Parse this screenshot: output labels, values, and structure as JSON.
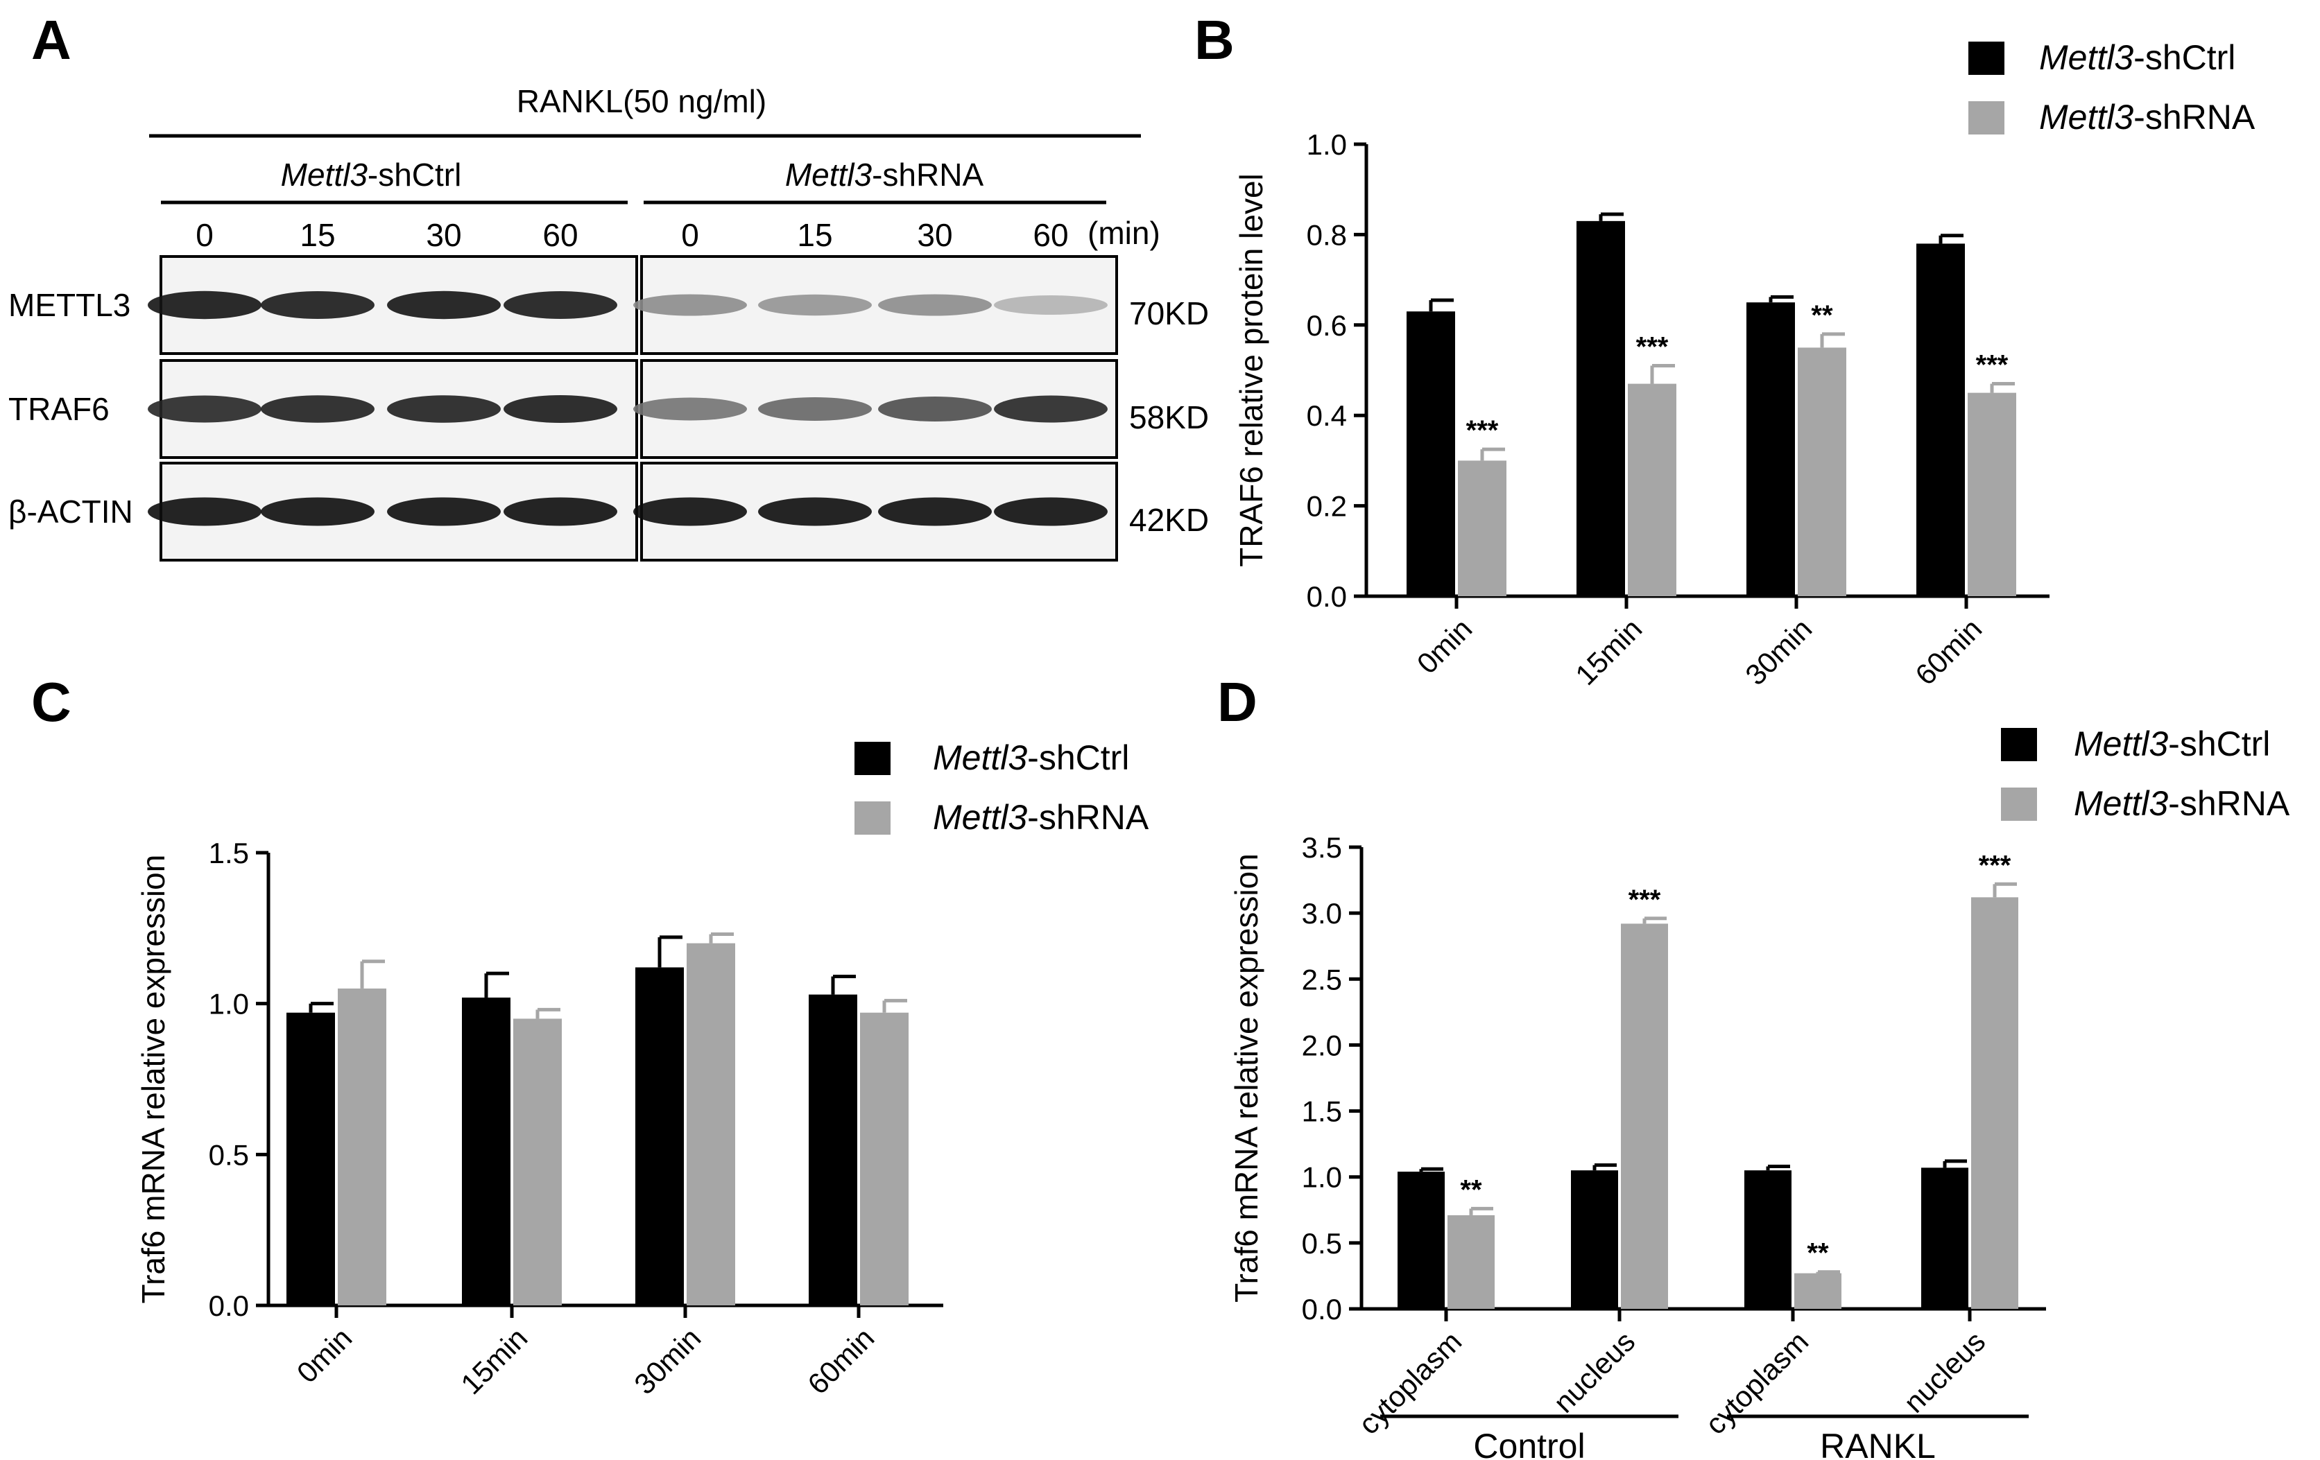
{
  "panel_letters": {
    "a": "A",
    "b": "B",
    "c": "C",
    "d": "D"
  },
  "blot": {
    "treatment_label": "RANKL(50 ng/ml)",
    "groups": [
      {
        "gene": "Mettl3",
        "suffix": "-shCtrl"
      },
      {
        "gene": "Mettl3",
        "suffix": "-shRNA"
      }
    ],
    "times": [
      "0",
      "15",
      "30",
      "60",
      "0",
      "15",
      "30",
      "60"
    ],
    "time_unit": "(min)",
    "rows": [
      {
        "protein": "METTL3",
        "size": "70KD",
        "intensity": [
          0.92,
          0.9,
          0.92,
          0.9,
          0.45,
          0.42,
          0.45,
          0.3
        ]
      },
      {
        "protein": "TRAF6",
        "size": "58KD",
        "intensity": [
          0.85,
          0.88,
          0.88,
          0.9,
          0.55,
          0.6,
          0.7,
          0.85
        ]
      },
      {
        "protein": "β-ACTIN",
        "size": "42KD",
        "intensity": [
          0.95,
          0.95,
          0.95,
          0.95,
          0.95,
          0.95,
          0.95,
          0.95
        ]
      }
    ]
  },
  "legend": {
    "ctrl": {
      "italic": "Mettl3",
      "rest": "-shCtrl",
      "color": "#000000"
    },
    "shrna": {
      "italic": "Mettl3",
      "rest": "-shRNA",
      "color": "#a6a6a6"
    }
  },
  "chart_data": [
    {
      "panel": "B",
      "type": "bar",
      "ylabel": "TRAF6 relative protein level",
      "categories": [
        "0min",
        "15min",
        "30min",
        "60min"
      ],
      "ylim": [
        0,
        1.0
      ],
      "yticks": [
        "0.0",
        "0.2",
        "0.4",
        "0.6",
        "0.8",
        "1.0"
      ],
      "series": [
        {
          "name": "Mettl3-shCtrl",
          "values": [
            0.63,
            0.83,
            0.65,
            0.78
          ],
          "errors": [
            0.025,
            0.015,
            0.012,
            0.018
          ]
        },
        {
          "name": "Mettl3-shRNA",
          "values": [
            0.3,
            0.47,
            0.55,
            0.45
          ],
          "errors": [
            0.025,
            0.04,
            0.03,
            0.02
          ]
        }
      ],
      "significance": [
        "***",
        "***",
        "**",
        "***"
      ]
    },
    {
      "panel": "C",
      "type": "bar",
      "ylabel": "Traf6 mRNA relative expression",
      "categories": [
        "0min",
        "15min",
        "30min",
        "60min"
      ],
      "ylim": [
        0,
        1.5
      ],
      "yticks": [
        "0.0",
        "0.5",
        "1.0",
        "1.5"
      ],
      "series": [
        {
          "name": "Mettl3-shCtrl",
          "values": [
            0.97,
            1.02,
            1.12,
            1.03
          ],
          "errors": [
            0.03,
            0.08,
            0.1,
            0.06
          ]
        },
        {
          "name": "Mettl3-shRNA",
          "values": [
            1.05,
            0.95,
            1.2,
            0.97
          ],
          "errors": [
            0.09,
            0.03,
            0.03,
            0.04
          ]
        }
      ],
      "significance": [
        "",
        "",
        "",
        ""
      ]
    },
    {
      "panel": "D",
      "type": "bar",
      "ylabel": "Traf6 mRNA relative expression",
      "categories": [
        "cytoplasm",
        "nucleus",
        "cytoplasm",
        "nucleus"
      ],
      "groups": [
        {
          "label": "Control",
          "categories": [
            0,
            1
          ]
        },
        {
          "label": "RANKL",
          "categories": [
            2,
            3
          ]
        }
      ],
      "ylim": [
        0,
        3.5
      ],
      "yticks": [
        "0.0",
        "0.5",
        "1.0",
        "1.5",
        "2.0",
        "2.5",
        "3.0",
        "3.5"
      ],
      "series": [
        {
          "name": "Mettl3-shCtrl",
          "values": [
            1.04,
            1.05,
            1.05,
            1.07
          ],
          "errors": [
            0.02,
            0.04,
            0.03,
            0.05
          ]
        },
        {
          "name": "Mettl3-shRNA",
          "values": [
            0.71,
            2.92,
            0.27,
            3.12
          ],
          "errors": [
            0.05,
            0.04,
            0.01,
            0.1
          ]
        }
      ],
      "significance": [
        "**",
        "***",
        "**",
        "***"
      ]
    }
  ]
}
